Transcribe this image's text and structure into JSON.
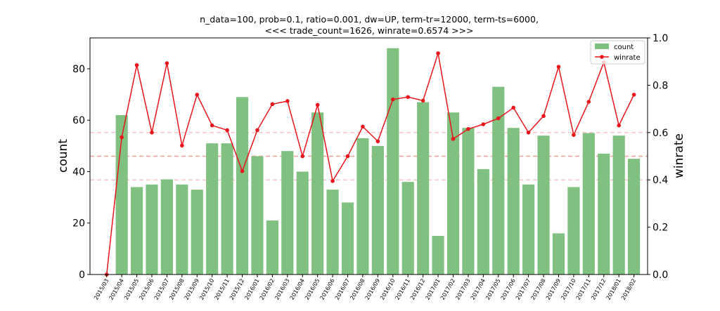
{
  "chart_data": {
    "type": "bar",
    "title_lines": [
      "n_data=100, prob=0.1, ratio=0.001, dw=UP, term-tr=12000, term-ts=6000,",
      "<<< trade_count=1626, winrate=0.6574 >>>"
    ],
    "categories": [
      "2015/03",
      "2015/04",
      "2015/05",
      "2015/06",
      "2015/07",
      "2015/08",
      "2015/09",
      "2015/10",
      "2015/11",
      "2015/12",
      "2016/01",
      "2016/02",
      "2016/03",
      "2016/04",
      "2016/05",
      "2016/06",
      "2016/07",
      "2016/08",
      "2016/09",
      "2016/10",
      "2016/11",
      "2016/12",
      "2017/01",
      "2017/02",
      "2017/03",
      "2017/04",
      "2017/05",
      "2017/06",
      "2017/07",
      "2017/08",
      "2017/09",
      "2017/10",
      "2017/11",
      "2017/12",
      "2018/01",
      "2018/02"
    ],
    "series": [
      {
        "name": "count",
        "type": "bar",
        "axis": "left",
        "color": "#80c080",
        "values": [
          0,
          62,
          34,
          35,
          37,
          35,
          33,
          51,
          51,
          69,
          46,
          21,
          48,
          40,
          63,
          33,
          28,
          53,
          50,
          88,
          36,
          67,
          15,
          63,
          57,
          41,
          73,
          57,
          35,
          54,
          16,
          34,
          55,
          47,
          54,
          45
        ]
      },
      {
        "name": "winrate",
        "type": "line",
        "axis": "right",
        "color": "#e8151c",
        "values": [
          0.0,
          0.58,
          0.885,
          0.6,
          0.893,
          0.545,
          0.76,
          0.63,
          0.61,
          0.437,
          0.61,
          0.72,
          0.733,
          0.5,
          0.717,
          0.395,
          0.5,
          0.625,
          0.563,
          0.74,
          0.75,
          0.735,
          0.935,
          0.573,
          0.615,
          0.635,
          0.66,
          0.705,
          0.6,
          0.67,
          0.878,
          0.59,
          0.73,
          0.897,
          0.63,
          0.76
        ]
      }
    ],
    "ylabel": "count",
    "ylabel_right": "winrate",
    "ylim": [
      0,
      92
    ],
    "ylim_right": [
      0.0,
      1.0
    ],
    "yticks": [
      0,
      20,
      40,
      60,
      80
    ],
    "yticks_right": [
      "0.0",
      "0.2",
      "0.4",
      "0.6",
      "0.8",
      "1.0"
    ],
    "reference_lines_right": [
      0.4,
      0.5,
      0.6
    ],
    "reference_line_color": "#f08080",
    "grid": false,
    "legend_position": "top-right"
  }
}
